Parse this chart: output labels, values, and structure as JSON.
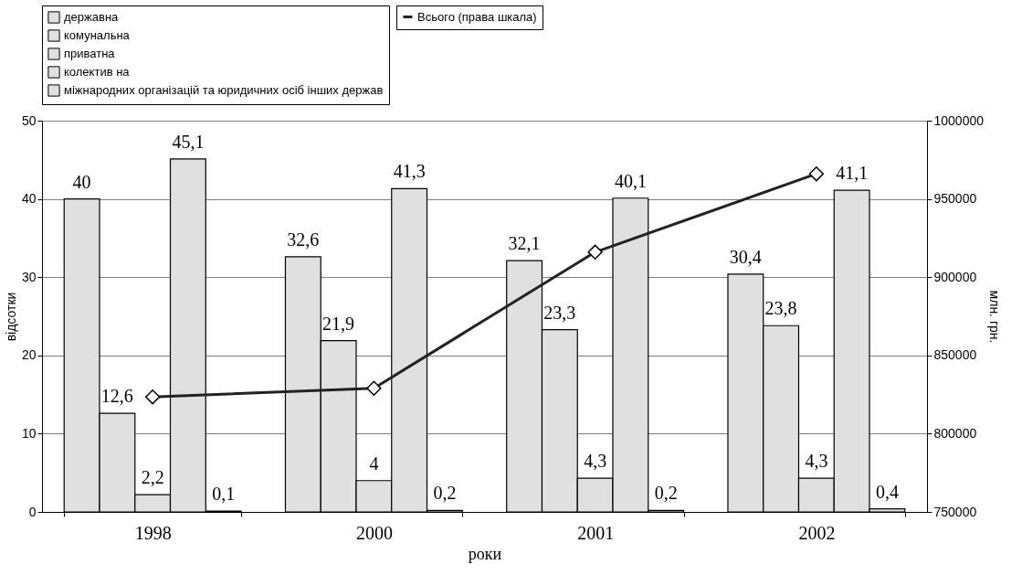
{
  "chart_data": {
    "type": "bar",
    "categories": [
      "1998",
      "2000",
      "2001",
      "2002"
    ],
    "xlabel": "роки",
    "ylabel": "відсотки",
    "y2label": "млн. грн.",
    "ylim": [
      0,
      50
    ],
    "yticks": [
      0,
      10,
      20,
      30,
      40,
      50
    ],
    "y2lim": [
      750000,
      1000000
    ],
    "y2ticks": [
      750000,
      800000,
      850000,
      900000,
      950000,
      1000000
    ],
    "grid": "y",
    "legend": "top",
    "series": [
      {
        "name": "державна",
        "color": "#e0e0e0",
        "values": [
          40,
          32.6,
          32.1,
          30.4
        ],
        "value_labels": [
          "40",
          "32,6",
          "32,1",
          "30,4"
        ]
      },
      {
        "name": "комунальна",
        "color": "#e0e0e0",
        "values": [
          12.6,
          21.9,
          23.3,
          23.8
        ],
        "value_labels": [
          "12,6",
          "21,9",
          "23,3",
          "23,8"
        ]
      },
      {
        "name": "приватна",
        "color": "#e0e0e0",
        "values": [
          2.2,
          4,
          4.3,
          4.3
        ],
        "value_labels": [
          "2,2",
          "4",
          "4,3",
          "4,3"
        ]
      },
      {
        "name": "колектив на",
        "color": "#e0e0e0",
        "values": [
          45.1,
          41.3,
          40.1,
          41.1
        ],
        "value_labels": [
          "45,1",
          "41,3",
          "40,1",
          "41,1"
        ]
      },
      {
        "name": "міжнародних організацій та юридичних осіб інших держав",
        "color": "#e0e0e0",
        "values": [
          0.1,
          0.2,
          0.2,
          0.4
        ],
        "value_labels": [
          "0,1",
          "0,2",
          "0,2",
          "0,4"
        ]
      },
      {
        "name": "Всього (права шкала)",
        "type": "line",
        "axis": "y2",
        "color": "#222222",
        "marker": "diamond",
        "line_style": "solid",
        "values": [
          823500,
          829000,
          916000,
          966000
        ]
      }
    ]
  }
}
